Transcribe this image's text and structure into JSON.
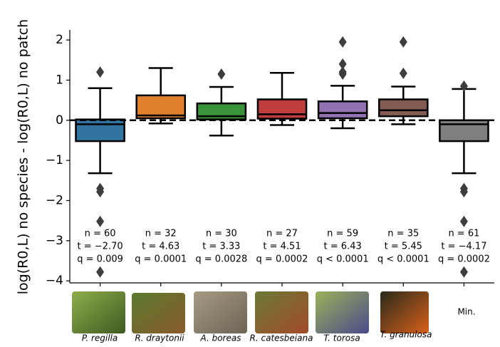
{
  "chart_data": {
    "type": "box",
    "ylabel": "log(R0,L) no species - log(R0,L) no patch",
    "categories": [
      "P. regilla",
      "R. draytonii",
      "A. boreas",
      "R. catesbeiana",
      "T. torosa",
      "T. granulosa",
      "Min."
    ],
    "colors": [
      "#3274a1",
      "#e1812c",
      "#3a923a",
      "#c03d3e",
      "#9372b2",
      "#845b53",
      "#7f7f7f"
    ],
    "boxes": [
      {
        "q1": -0.52,
        "median": -0.1,
        "q3": 0.02,
        "whislo": -1.32,
        "whishi": 0.8,
        "fliers": [
          1.2,
          -1.7,
          -1.78,
          -2.52,
          -3.78
        ]
      },
      {
        "q1": 0.05,
        "median": 0.12,
        "q3": 0.62,
        "whislo": -0.08,
        "whishi": 1.3,
        "fliers": []
      },
      {
        "q1": 0.02,
        "median": 0.1,
        "q3": 0.42,
        "whislo": -0.38,
        "whishi": 0.83,
        "fliers": [
          1.15
        ]
      },
      {
        "q1": 0.04,
        "median": 0.15,
        "q3": 0.52,
        "whislo": -0.12,
        "whishi": 1.18,
        "fliers": []
      },
      {
        "q1": 0.05,
        "median": 0.18,
        "q3": 0.47,
        "whislo": -0.2,
        "whishi": 0.86,
        "fliers": [
          1.15,
          1.2,
          1.4,
          1.95
        ]
      },
      {
        "q1": 0.1,
        "median": 0.25,
        "q3": 0.52,
        "whislo": -0.1,
        "whishi": 0.84,
        "fliers": [
          1.17,
          1.95
        ]
      },
      {
        "q1": -0.52,
        "median": -0.1,
        "q3": 0.0,
        "whislo": -1.32,
        "whishi": 0.78,
        "fliers": [
          0.85,
          -1.7,
          -1.78,
          -2.52,
          -3.78
        ]
      }
    ],
    "stats": [
      [
        "n = 60",
        "t = −2.70",
        "q = 0.009"
      ],
      [
        "n = 32",
        "t = 4.63",
        "q = 0.0001"
      ],
      [
        "n = 30",
        "t = 3.33",
        "q = 0.0028"
      ],
      [
        "n = 27",
        "t = 4.51",
        "q = 0.0002"
      ],
      [
        "n = 59",
        "t = 6.43",
        "q < 0.0001"
      ],
      [
        "n = 35",
        "t = 5.45",
        "q < 0.0001"
      ],
      [
        "n = 61",
        "t = −4.17",
        "q = 0.0002"
      ]
    ],
    "reference_line": 0,
    "ylim": [
      -4.05,
      2.25
    ],
    "yticks": [
      {
        "value": -4,
        "label": "−4"
      },
      {
        "value": -3,
        "label": "−3"
      },
      {
        "value": -2,
        "label": "−2"
      },
      {
        "value": -1,
        "label": "−1"
      },
      0,
      1,
      2
    ]
  }
}
